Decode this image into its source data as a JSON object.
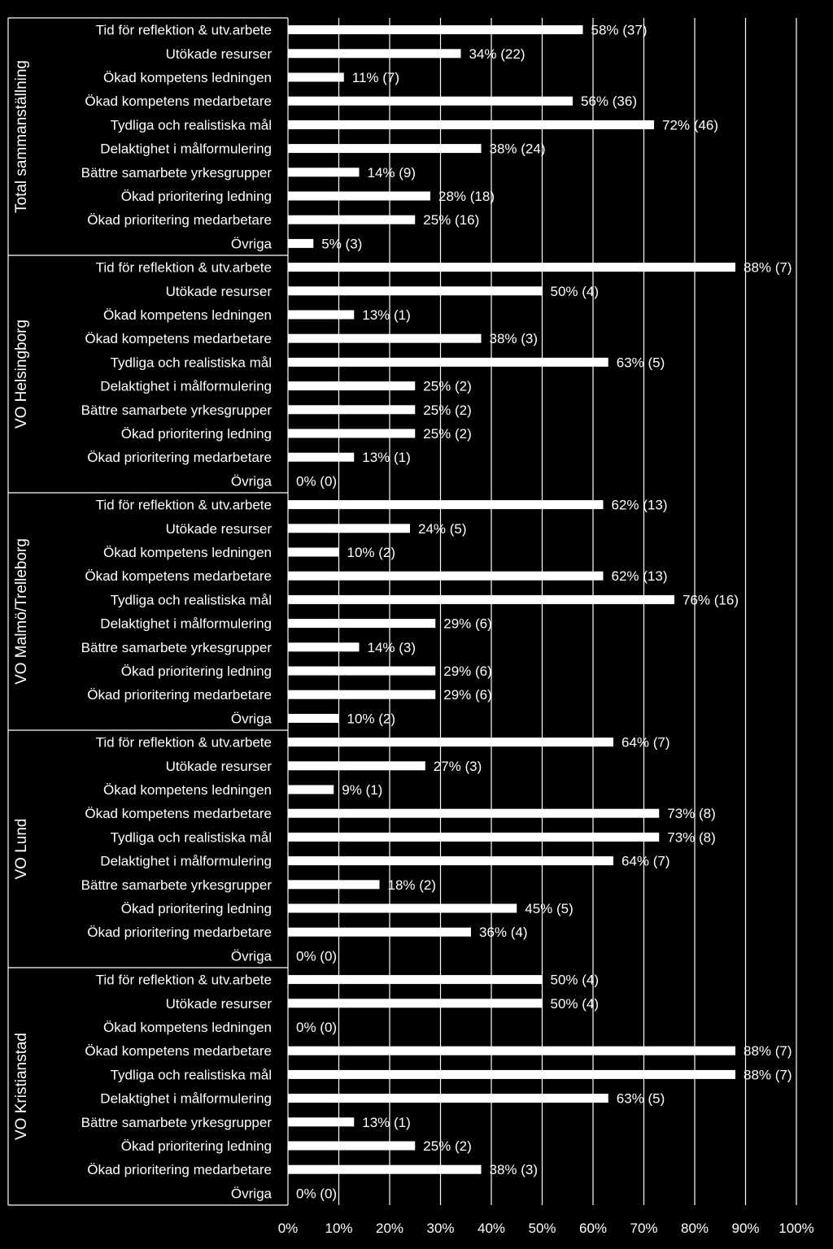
{
  "chart_data": {
    "type": "bar",
    "orientation": "horizontal",
    "xlim": [
      0,
      100
    ],
    "x_ticks": [
      "0%",
      "10%",
      "20%",
      "30%",
      "40%",
      "50%",
      "60%",
      "70%",
      "80%",
      "90%",
      "100%"
    ],
    "grid": true,
    "colors": {
      "background": "#000000",
      "bar": "#ffffff",
      "text": "#ffffff",
      "grid": "#ffffff"
    },
    "categories": [
      "Tid för reflektion & utv.arbete",
      "Utökade resurser",
      "Ökad kompetens ledningen",
      "Ökad kompetens medarbetare",
      "Tydliga och realistiska mål",
      "Delaktighet i målformulering",
      "Bättre samarbete yrkesgrupper",
      "Ökad prioritering ledning",
      "Ökad prioritering medarbetare",
      "Övriga"
    ],
    "groups": [
      {
        "name": "Total sammanställning",
        "values": [
          58,
          34,
          11,
          56,
          72,
          38,
          14,
          28,
          25,
          5
        ],
        "labels": [
          "58% (37)",
          "34% (22)",
          "11% (7)",
          "56% (36)",
          "72% (46)",
          "38% (24)",
          "14% (9)",
          "28% (18)",
          "25% (16)",
          "5% (3)"
        ]
      },
      {
        "name": "VO Helsingborg",
        "values": [
          88,
          50,
          13,
          38,
          63,
          25,
          25,
          25,
          13,
          0
        ],
        "labels": [
          "88% (7)",
          "50% (4)",
          "13% (1)",
          "38% (3)",
          "63% (5)",
          "25% (2)",
          "25% (2)",
          "25% (2)",
          "13% (1)",
          "0% (0)"
        ]
      },
      {
        "name": "VO Malmö/Trelleborg",
        "values": [
          62,
          24,
          10,
          62,
          76,
          29,
          14,
          29,
          29,
          10
        ],
        "labels": [
          "62% (13)",
          "24% (5)",
          "10% (2)",
          "62% (13)",
          "76% (16)",
          "29% (6)",
          "14% (3)",
          "29% (6)",
          "29% (6)",
          "10% (2)"
        ]
      },
      {
        "name": "VO Lund",
        "values": [
          64,
          27,
          9,
          73,
          73,
          64,
          18,
          45,
          36,
          0
        ],
        "labels": [
          "64% (7)",
          "27% (3)",
          "9% (1)",
          "73% (8)",
          "73% (8)",
          "64% (7)",
          "18% (2)",
          "45% (5)",
          "36% (4)",
          "0% (0)"
        ]
      },
      {
        "name": "VO Kristianstad",
        "values": [
          50,
          50,
          0,
          88,
          88,
          63,
          13,
          25,
          38,
          0
        ],
        "labels": [
          "50% (4)",
          "50% (4)",
          "0% (0)",
          "88% (7)",
          "88% (7)",
          "63% (5)",
          "13% (1)",
          "25% (2)",
          "38% (3)",
          "0% (0)"
        ]
      }
    ]
  }
}
